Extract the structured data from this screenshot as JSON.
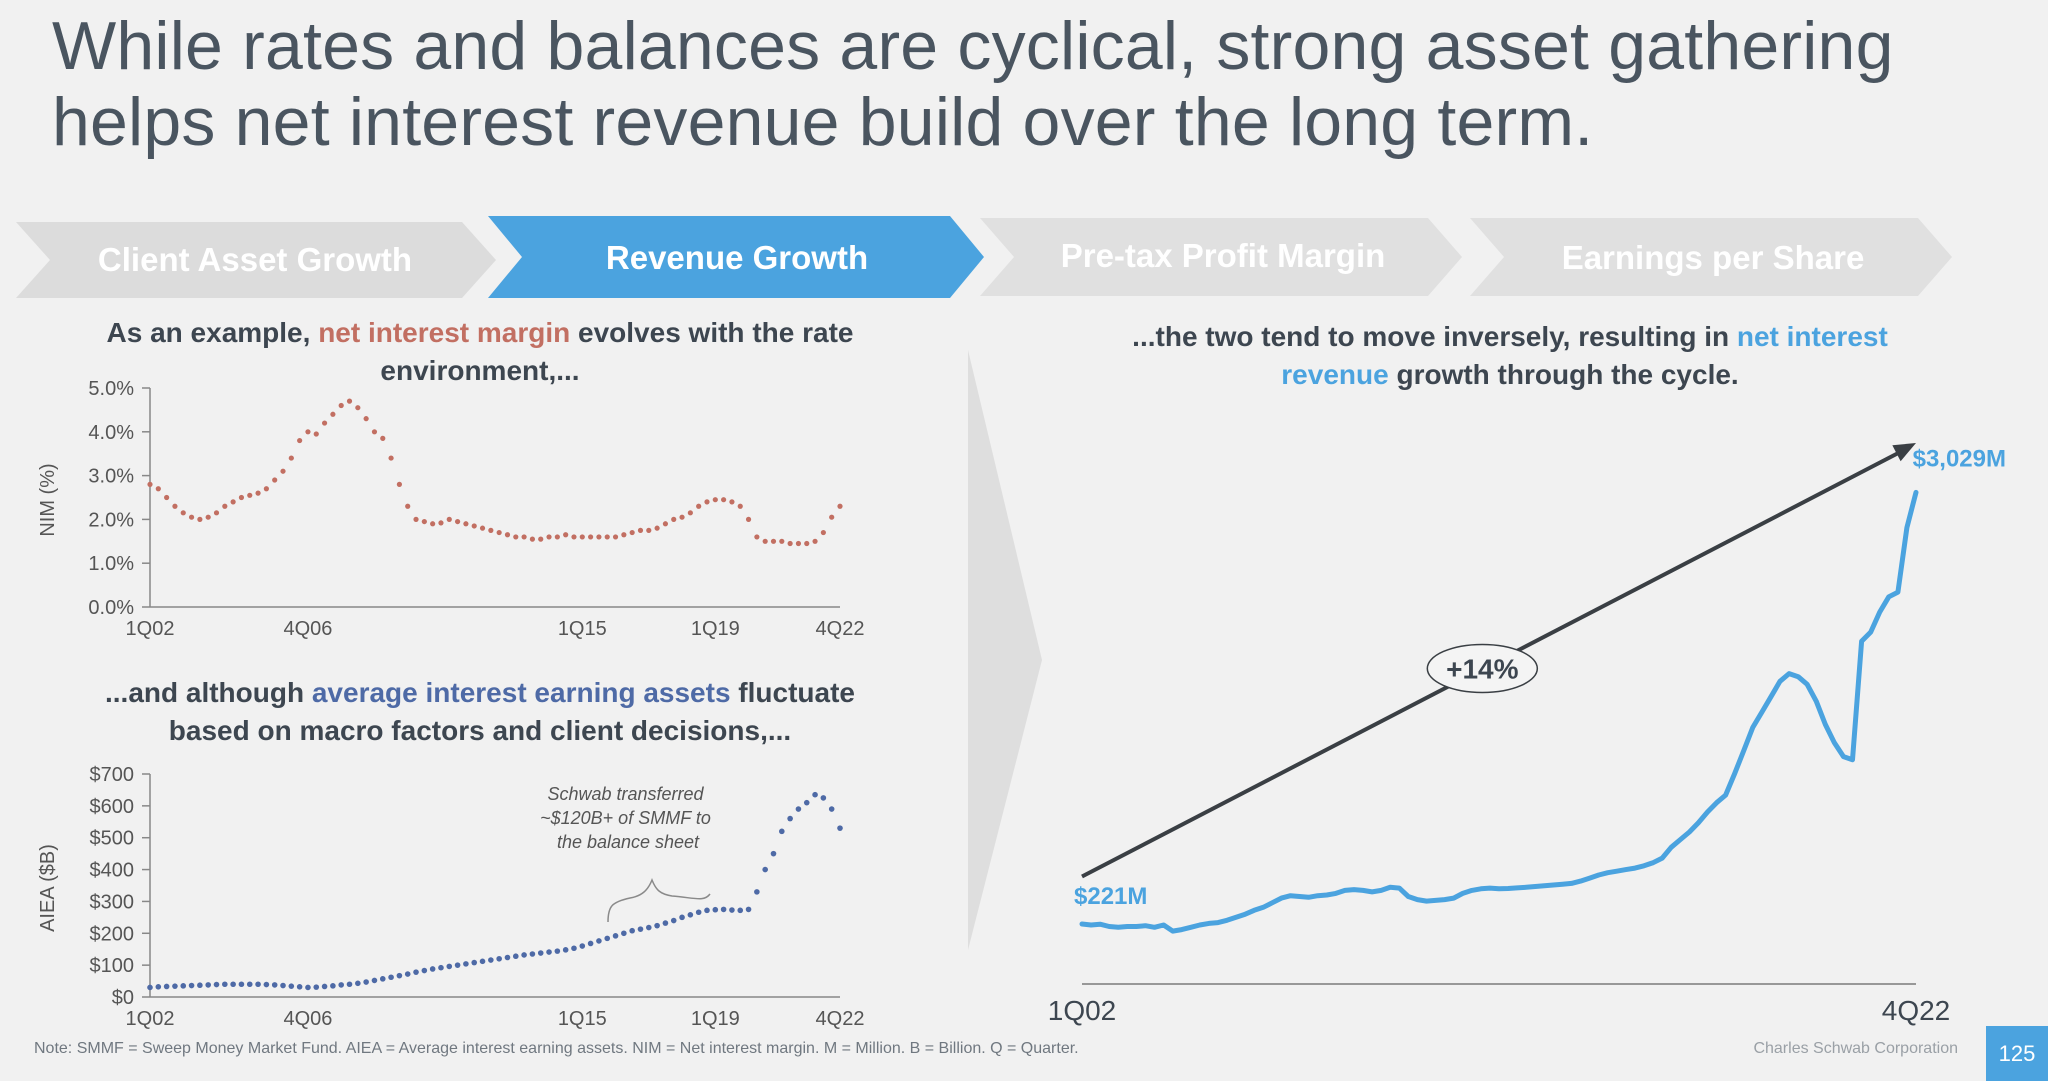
{
  "header": {
    "title_line1": "While rates and balances are cyclical, strong asset gathering",
    "title_line2": "helps net interest revenue build over the long term."
  },
  "flow_steps": [
    {
      "label": "Client Asset Growth",
      "active": false
    },
    {
      "label": "Revenue Growth",
      "active": true
    },
    {
      "label": "Pre-tax Profit Margin",
      "active": false
    },
    {
      "label": "Earnings per Share",
      "active": false
    }
  ],
  "colors": {
    "accent_blue": "#4ba3df",
    "nim_red": "#c26f62",
    "aiea_blue": "#4e6aa6",
    "inactive_chevron": "#dcdcdc",
    "text_dark": "#3d4650"
  },
  "subheads": {
    "nim_prefix": "As an example, ",
    "nim_highlight": "net interest margin",
    "nim_suffix_1": " evolves with the rate",
    "nim_suffix_2": "environment,...",
    "aiea_prefix": "...and although ",
    "aiea_highlight": "average interest earning assets",
    "aiea_suffix_1": " fluctuate",
    "aiea_suffix_2": "based on macro factors and client decisions,...",
    "nir_prefix": "...the two tend to move inversely, resulting in ",
    "nir_highlight_1": "net interest",
    "nir_highlight_2": "revenue",
    "nir_suffix": " growth through the cycle."
  },
  "chart_data": [
    {
      "type": "line",
      "ylabel": "NIM (%)",
      "ytick_labels": [
        "5.0%",
        "4.0%",
        "3.0%",
        "2.0%",
        "1.0%",
        "0.0%"
      ],
      "ylim": [
        0,
        5
      ],
      "xlim": [
        0,
        83
      ],
      "xtick_labels": [
        "1Q02",
        "4Q06",
        "1Q15",
        "1Q19",
        "4Q22"
      ],
      "xtick_positions": [
        0,
        19,
        52,
        68,
        83
      ],
      "line_style": "dotted",
      "series": [
        {
          "values": [
            2.8,
            2.7,
            2.5,
            2.3,
            2.15,
            2.05,
            2.0,
            2.05,
            2.15,
            2.3,
            2.4,
            2.5,
            2.55,
            2.6,
            2.7,
            2.9,
            3.1,
            3.4,
            3.8,
            4.0,
            3.95,
            4.2,
            4.4,
            4.6,
            4.7,
            4.55,
            4.3,
            4.0,
            3.85,
            3.4,
            2.8,
            2.3,
            2.0,
            1.95,
            1.9,
            1.92,
            2.0,
            1.95,
            1.9,
            1.85,
            1.8,
            1.75,
            1.7,
            1.65,
            1.6,
            1.6,
            1.55,
            1.55,
            1.6,
            1.6,
            1.65,
            1.6,
            1.6,
            1.6,
            1.6,
            1.6,
            1.6,
            1.65,
            1.7,
            1.75,
            1.75,
            1.8,
            1.9,
            2.0,
            2.05,
            2.15,
            2.3,
            2.4,
            2.45,
            2.45,
            2.4,
            2.3,
            2.0,
            1.6,
            1.5,
            1.5,
            1.5,
            1.45,
            1.45,
            1.45,
            1.5,
            1.7,
            2.05,
            2.3
          ]
        }
      ]
    },
    {
      "type": "line",
      "ylabel": "AIEA ($B)",
      "ytick_labels": [
        "$700",
        "$600",
        "$500",
        "$400",
        "$300",
        "$200",
        "$100",
        "$0"
      ],
      "ylim": [
        0,
        700
      ],
      "xlim": [
        0,
        83
      ],
      "xtick_labels": [
        "1Q02",
        "4Q06",
        "1Q15",
        "1Q19",
        "4Q22"
      ],
      "xtick_positions": [
        0,
        19,
        52,
        68,
        83
      ],
      "line_style": "dotted",
      "series": [
        {
          "values": [
            30,
            32,
            33,
            34,
            35,
            36,
            37,
            38,
            39,
            40,
            40,
            40,
            40,
            40,
            39,
            38,
            36,
            34,
            32,
            30,
            31,
            33,
            35,
            38,
            40,
            43,
            47,
            52,
            57,
            62,
            67,
            72,
            78,
            83,
            88,
            92,
            96,
            100,
            104,
            108,
            112,
            116,
            120,
            124,
            128,
            132,
            135,
            138,
            141,
            144,
            148,
            153,
            160,
            168,
            176,
            184,
            192,
            200,
            208,
            213,
            218,
            224,
            232,
            240,
            250,
            258,
            266,
            272,
            274,
            275,
            273,
            272,
            275,
            330,
            400,
            450,
            520,
            560,
            590,
            610,
            635,
            625,
            590,
            530
          ]
        }
      ],
      "annotation": "Schwab transferred\n~$120B+ of SMMF to\nthe balance sheet"
    },
    {
      "type": "line",
      "xtick_labels": [
        "1Q02",
        "4Q22"
      ],
      "start_label": "$221M",
      "end_label": "$3,029M",
      "start_value": 221,
      "end_value": 3029,
      "trend_label": "+14%",
      "trend_start_value": 530,
      "trend_end_value": 3350,
      "ylim": [
        0,
        3500
      ],
      "xlim": [
        0,
        83
      ],
      "series": [
        {
          "values": [
            221,
            215,
            220,
            205,
            200,
            205,
            205,
            210,
            200,
            215,
            175,
            185,
            200,
            215,
            225,
            230,
            245,
            265,
            285,
            310,
            330,
            360,
            390,
            405,
            400,
            395,
            405,
            410,
            420,
            440,
            445,
            440,
            430,
            440,
            460,
            455,
            400,
            380,
            370,
            375,
            380,
            390,
            420,
            440,
            450,
            455,
            450,
            452,
            456,
            460,
            465,
            470,
            475,
            480,
            485,
            500,
            520,
            540,
            555,
            565,
            575,
            585,
            600,
            620,
            650,
            720,
            770,
            820,
            880,
            950,
            1010,
            1060,
            1200,
            1350,
            1500,
            1600,
            1700,
            1800,
            1850,
            1830,
            1780,
            1670,
            1520,
            1400,
            1310,
            1290,
            2060,
            2120,
            2250,
            2350,
            2380,
            2800,
            3029
          ]
        }
      ]
    }
  ],
  "footer": {
    "note": "Note:  SMMF = Sweep Money Market Fund. AIEA = Average interest earning assets. NIM = Net interest margin. M = Million. B = Billion. Q = Quarter.",
    "company": "Charles Schwab Corporation",
    "page_number": "125"
  }
}
